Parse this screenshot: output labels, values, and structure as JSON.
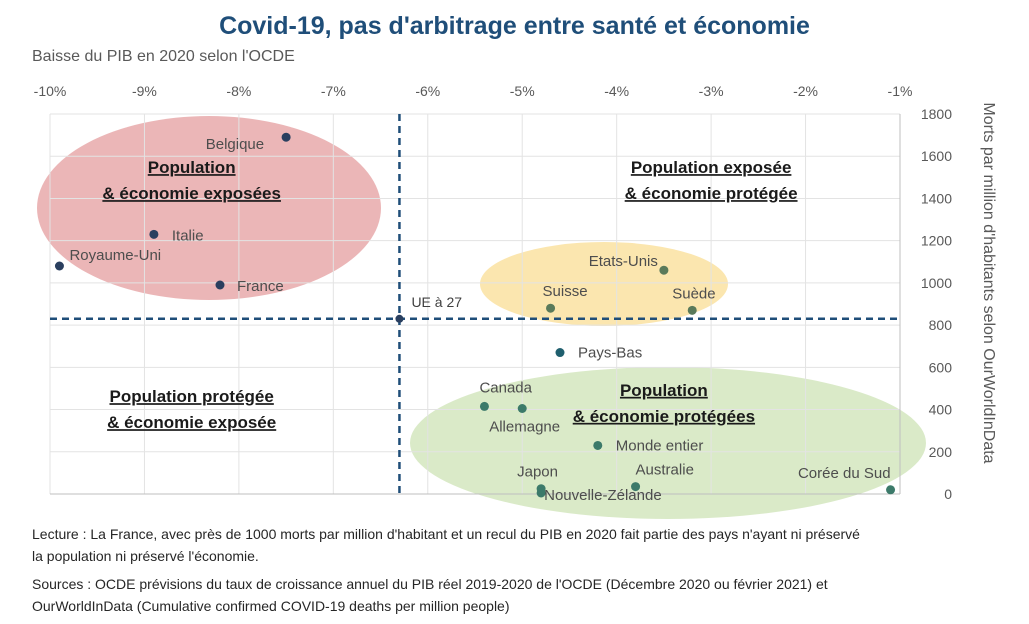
{
  "title": "Covid-19, pas d'arbitrage entre santé et économie",
  "subtitle": "Baisse du PIB en 2020 selon l'OCDE",
  "lecture": [
    "Lecture : La France, avec près de 1000 morts par million d'habitant et un recul du PIB en 2020 fait partie des pays n'ayant ni préservé",
    "la population ni préservé l'économie."
  ],
  "sources": [
    "Sources : OCDE prévisions du taux de croissance annuel du PIB réel 2019-2020 de l'OCDE (Décembre 2020 ou février 2021) et",
    "OurWorldInData (Cumulative confirmed COVID-19 deaths per million people)"
  ],
  "chart_data": {
    "type": "scatter",
    "title": "Covid-19, pas d'arbitrage entre santé et économie",
    "xlabel": "Baisse du PIB en 2020 selon l'OCDE",
    "ylabel": "Morts par million d'habitants selon OurWorldInData",
    "xlim": [
      -10,
      -1
    ],
    "ylim": [
      0,
      1800
    ],
    "x_ticks": [
      "-10%",
      "-9%",
      "-8%",
      "-7%",
      "-6%",
      "-5%",
      "-4%",
      "-3%",
      "-2%",
      "-1%"
    ],
    "y_ticks": [
      "0",
      "200",
      "400",
      "600",
      "800",
      "1000",
      "1200",
      "1400",
      "1600",
      "1800"
    ],
    "x_axis_position": "top",
    "y_axis_position": "right",
    "grid": true,
    "points": [
      {
        "label": "Belgique",
        "x": -7.5,
        "y": 1690,
        "group": "red"
      },
      {
        "label": "Italie",
        "x": -8.9,
        "y": 1230,
        "group": "red"
      },
      {
        "label": "Royaume-Uni",
        "x": -9.9,
        "y": 1080,
        "group": "red"
      },
      {
        "label": "France",
        "x": -8.2,
        "y": 990,
        "group": "red"
      },
      {
        "label": "Etats-Unis",
        "x": -3.5,
        "y": 1060,
        "group": "yellow"
      },
      {
        "label": "Suisse",
        "x": -4.7,
        "y": 880,
        "group": "yellow"
      },
      {
        "label": "Suède",
        "x": -3.2,
        "y": 870,
        "group": "yellow"
      },
      {
        "label": "Pays-Bas",
        "x": -4.6,
        "y": 670,
        "group": "teal"
      },
      {
        "label": "Canada",
        "x": -5.4,
        "y": 415,
        "group": "green"
      },
      {
        "label": "Allemagne",
        "x": -5.0,
        "y": 405,
        "group": "green"
      },
      {
        "label": "Monde entier",
        "x": -4.2,
        "y": 230,
        "group": "green"
      },
      {
        "label": "Japon",
        "x": -4.8,
        "y": 25,
        "group": "green"
      },
      {
        "label": "Australie",
        "x": -3.8,
        "y": 35,
        "group": "green"
      },
      {
        "label": "Nouvelle-Zélande",
        "x": -4.8,
        "y": 5,
        "group": "green"
      },
      {
        "label": "Corée du Sud",
        "x": -1.1,
        "y": 20,
        "group": "green"
      }
    ],
    "reference": {
      "label": "UE à 27",
      "x": -6.3,
      "y": 830
    },
    "annotations": [
      {
        "lines": [
          "Population",
          "& économie exposées"
        ],
        "x": -8.5,
        "y": 1520
      },
      {
        "lines": [
          "Population exposée",
          "& économie protégée"
        ],
        "x": -3.0,
        "y": 1520
      },
      {
        "lines": [
          "Population protégée",
          "& économie exposée"
        ],
        "x": -8.5,
        "y": 435
      },
      {
        "lines": [
          "Population",
          "& économie protégées"
        ],
        "x": -3.5,
        "y": 465
      }
    ],
    "colors": {
      "title": "#1f4e79",
      "point": "#2a3f5f",
      "reference_line": "#1f4e79",
      "red_zone": "#e8a9aa",
      "yellow_zone": "#fbe3a6",
      "green_zone": "#d6e8c2"
    }
  }
}
